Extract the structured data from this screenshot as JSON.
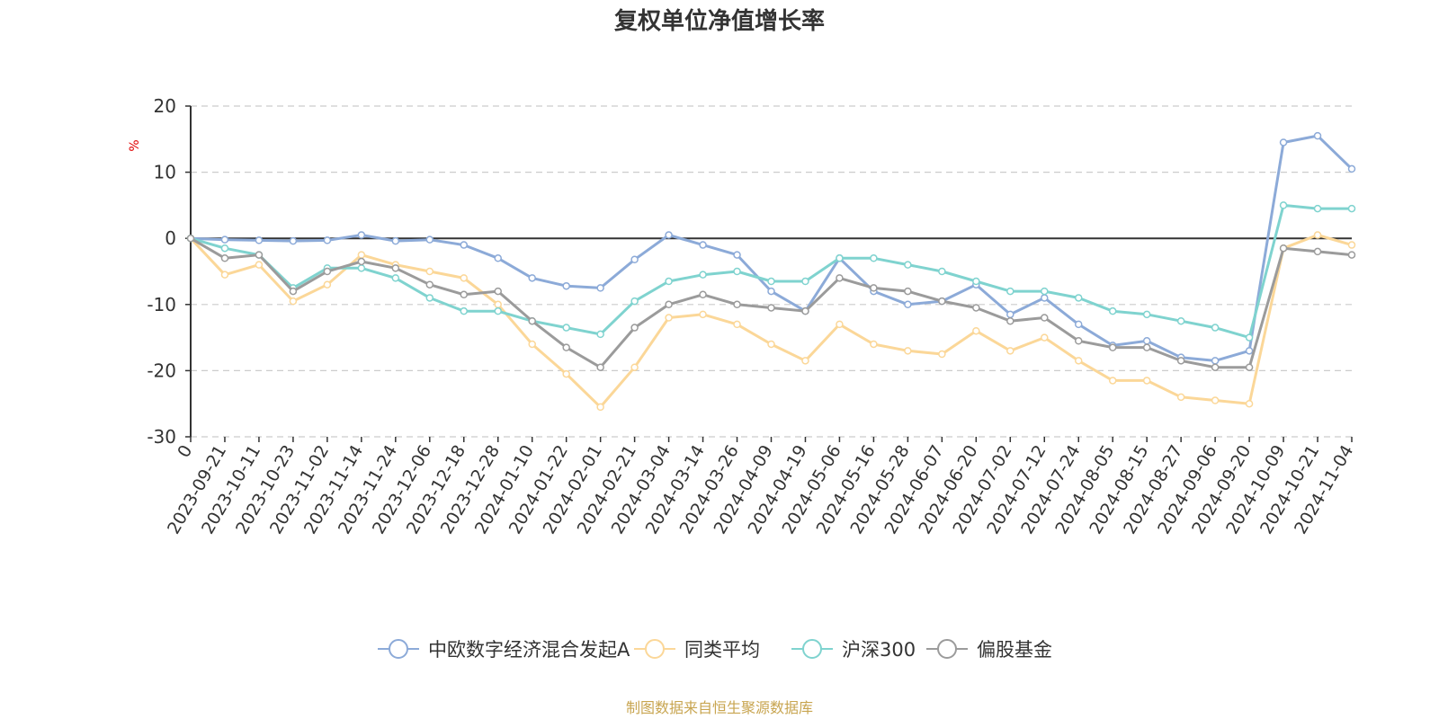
{
  "chart_data": {
    "type": "line",
    "title": "复权单位净值增长率",
    "ylabel": "%",
    "ylim": [
      -30,
      20
    ],
    "yticks": [
      20,
      10,
      0,
      -10,
      -20,
      -30
    ],
    "categories": [
      "0",
      "2023-09-21",
      "2023-10-11",
      "2023-10-23",
      "2023-11-02",
      "2023-11-14",
      "2023-11-24",
      "2023-12-06",
      "2023-12-18",
      "2023-12-28",
      "2024-01-10",
      "2024-01-22",
      "2024-02-01",
      "2024-02-21",
      "2024-03-04",
      "2024-03-14",
      "2024-03-26",
      "2024-04-09",
      "2024-04-19",
      "2024-05-06",
      "2024-05-16",
      "2024-05-28",
      "2024-06-07",
      "2024-06-20",
      "2024-07-02",
      "2024-07-12",
      "2024-07-24",
      "2024-08-05",
      "2024-08-15",
      "2024-08-27",
      "2024-09-06",
      "2024-09-20",
      "2024-10-09",
      "2024-10-21",
      "2024-11-04"
    ],
    "series": [
      {
        "name": "中欧数字经济混合发起A",
        "color": "#8caad8",
        "values": [
          0,
          -0.2,
          -0.3,
          -0.4,
          -0.3,
          0.5,
          -0.4,
          -0.2,
          -1.0,
          -3.0,
          -6.0,
          -7.2,
          -7.5,
          -3.2,
          0.5,
          -1.0,
          -2.5,
          -8.0,
          -11.0,
          -3.0,
          -8.0,
          -10.0,
          -9.5,
          -7.0,
          -11.5,
          -9.0,
          -13.0,
          -16.2,
          -15.5,
          -18.0,
          -18.5,
          -17.0,
          14.5,
          15.5,
          10.5
        ]
      },
      {
        "name": "同类平均",
        "color": "#fbd798",
        "values": [
          0,
          -5.5,
          -4.0,
          -9.5,
          -7.0,
          -2.5,
          -4.0,
          -5.0,
          -6.0,
          -10.0,
          -16.0,
          -20.5,
          -25.5,
          -19.5,
          -12.0,
          -11.5,
          -13.0,
          -16.0,
          -18.5,
          -13.0,
          -16.0,
          -17.0,
          -17.5,
          -14.0,
          -17.0,
          -15.0,
          -18.5,
          -21.5,
          -21.5,
          -24.0,
          -24.5,
          -25.0,
          -1.5,
          0.5,
          -1.0
        ]
      },
      {
        "name": "沪深300",
        "color": "#7fd3cf",
        "values": [
          0,
          -1.5,
          -2.5,
          -7.5,
          -4.5,
          -4.5,
          -6.0,
          -9.0,
          -11.0,
          -11.0,
          -12.5,
          -13.5,
          -14.5,
          -9.5,
          -6.5,
          -5.5,
          -5.0,
          -6.5,
          -6.5,
          -3.0,
          -3.0,
          -4.0,
          -5.0,
          -6.5,
          -8.0,
          -8.0,
          -9.0,
          -11.0,
          -11.5,
          -12.5,
          -13.5,
          -15.0,
          5.0,
          4.5,
          4.5
        ]
      },
      {
        "name": "偏股基金",
        "color": "#9b9b9b",
        "values": [
          0,
          -3.0,
          -2.5,
          -8.0,
          -5.0,
          -3.5,
          -4.5,
          -7.0,
          -8.5,
          -8.0,
          -12.5,
          -16.5,
          -19.5,
          -13.5,
          -10.0,
          -8.5,
          -10.0,
          -10.5,
          -11.0,
          -6.0,
          -7.5,
          -8.0,
          -9.5,
          -10.5,
          -12.5,
          -12.0,
          -15.5,
          -16.5,
          -16.5,
          -18.5,
          -19.5,
          -19.5,
          -1.5,
          -2.0,
          -2.5
        ]
      }
    ],
    "grid": true,
    "legend": "bottom-center",
    "source_note": "制图数据来自恒生聚源数据库"
  },
  "colors": {
    "axis": "#333333",
    "grid": "#cccccc",
    "unit": "#e00000",
    "source": "#c8a550"
  }
}
